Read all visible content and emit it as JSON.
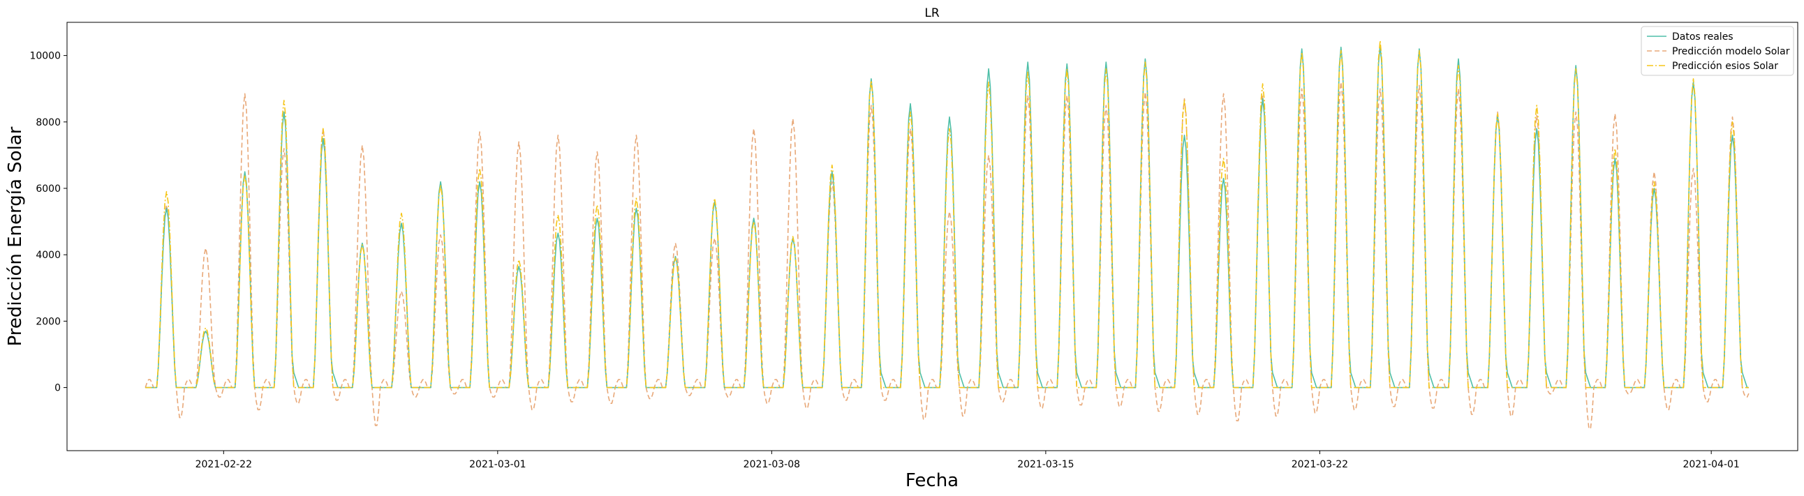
{
  "chart_data": {
    "type": "line",
    "title": "LR",
    "xlabel": "Fecha",
    "ylabel": "Predicción Energía Solar",
    "x_range": [
      "2021-02-18T00:00",
      "2021-04-03T05:00"
    ],
    "ylim": [
      -1900,
      11000
    ],
    "y_ticks": [
      0,
      2000,
      4000,
      6000,
      8000,
      10000
    ],
    "x_ticks": [
      "2021-02-22",
      "2021-03-01",
      "2021-03-08",
      "2021-03-15",
      "2021-03-22",
      "2021-04-01"
    ],
    "grid": false,
    "legend_position": "top-right",
    "colors": {
      "real": "#4fbfa8",
      "modelo": "#e8a878",
      "esios": "#f5c518"
    },
    "series_meta": [
      {
        "key": "real",
        "name": "Datos reales",
        "style": "solid"
      },
      {
        "key": "modelo",
        "name": "Predicción modelo Solar",
        "style": "dashed"
      },
      {
        "key": "esios",
        "name": "Predicción esios Solar",
        "style": "dashdot"
      }
    ],
    "series_start": "2021-02-20T00:00",
    "series_step_hours": 24,
    "daily_peaks": {
      "real": [
        5400,
        1700,
        6500,
        8300,
        7500,
        4350,
        4950,
        6200,
        6200,
        3650,
        4650,
        5100,
        5400,
        3950,
        5600,
        5100,
        4500,
        6500,
        9300,
        8550,
        8150,
        9600,
        9800,
        9750,
        9800,
        9900,
        7600,
        6300,
        8700,
        10200,
        10250,
        10300,
        10200,
        9900,
        8200,
        7800,
        9700,
        6900,
        6000,
        9200,
        7600
      ],
      "modelo": [
        5500,
        4200,
        8850,
        7200,
        7800,
        7300,
        2900,
        4600,
        7700,
        7400,
        7600,
        7100,
        7600,
        4350,
        4500,
        7800,
        8100,
        6200,
        8500,
        7800,
        5300,
        7000,
        8800,
        8800,
        8500,
        8900,
        8700,
        8850,
        8800,
        9000,
        9200,
        9000,
        9100,
        9000,
        8300,
        8200,
        8300,
        8250,
        6500,
        6600,
        8150
      ],
      "esios": [
        5900,
        1800,
        6400,
        8650,
        7800,
        4300,
        5250,
        6100,
        6600,
        3850,
        5200,
        5500,
        5700,
        3900,
        5700,
        5000,
        4550,
        6700,
        9250,
        8300,
        7800,
        9200,
        9500,
        9600,
        9600,
        9800,
        8650,
        6900,
        9150,
        10100,
        10150,
        10450,
        10150,
        9700,
        8250,
        8500,
        9600,
        7200,
        6200,
        9300,
        8000
      ]
    },
    "daily_minima_modelo": [
      -950,
      -300,
      -700,
      -500,
      -400,
      -1200,
      -300,
      -200,
      -300,
      -700,
      -450,
      -500,
      -350,
      -250,
      -300,
      -500,
      -650,
      -400,
      -400,
      -1000,
      -900,
      -450,
      -650,
      -550,
      -600,
      -750,
      -850,
      -1050,
      -900,
      -800,
      -700,
      -600,
      -650,
      -850,
      -900,
      -200,
      -1300,
      -200,
      -700,
      -450,
      -300
    ]
  }
}
